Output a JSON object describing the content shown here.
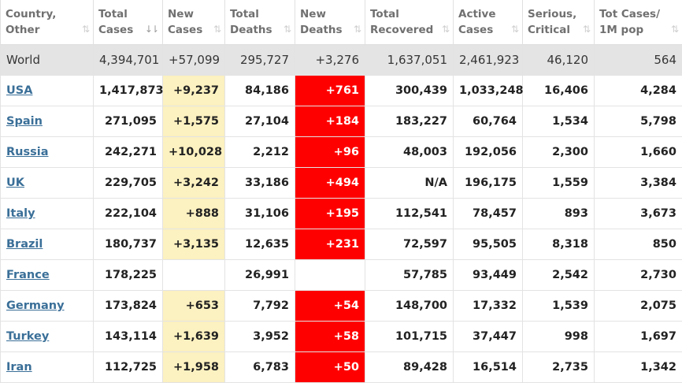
{
  "headers": [
    {
      "line1": "Country,",
      "line2": "Other",
      "sort": "⇅",
      "active": false
    },
    {
      "line1": "Total",
      "line2": "Cases",
      "sort": "↓⇂",
      "active": true
    },
    {
      "line1": "New",
      "line2": "Cases",
      "sort": "⇅",
      "active": false
    },
    {
      "line1": "Total",
      "line2": "Deaths",
      "sort": "⇅",
      "active": false
    },
    {
      "line1": "New",
      "line2": "Deaths",
      "sort": "⇅",
      "active": false
    },
    {
      "line1": "Total",
      "line2": "Recovered",
      "sort": "⇅",
      "active": false
    },
    {
      "line1": "Active",
      "line2": "Cases",
      "sort": "⇅",
      "active": false
    },
    {
      "line1": "Serious,",
      "line2": "Critical",
      "sort": "⇅",
      "active": false
    },
    {
      "line1": "Tot Cases/",
      "line2": "1M pop",
      "sort": "⇅",
      "active": false
    }
  ],
  "world": {
    "country": "World",
    "total_cases": "4,394,701",
    "new_cases": "+57,099",
    "total_deaths": "295,727",
    "new_deaths": "+3,276",
    "total_recovered": "1,637,051",
    "active_cases": "2,461,923",
    "serious_critical": "46,120",
    "cases_per_1m": "564"
  },
  "rows": [
    {
      "country": "USA",
      "total_cases": "1,417,873",
      "new_cases": "+9,237",
      "total_deaths": "84,186",
      "new_deaths": "+761",
      "total_recovered": "300,439",
      "active_cases": "1,033,248",
      "serious_critical": "16,406",
      "cases_per_1m": "4,284"
    },
    {
      "country": "Spain",
      "total_cases": "271,095",
      "new_cases": "+1,575",
      "total_deaths": "27,104",
      "new_deaths": "+184",
      "total_recovered": "183,227",
      "active_cases": "60,764",
      "serious_critical": "1,534",
      "cases_per_1m": "5,798"
    },
    {
      "country": "Russia",
      "total_cases": "242,271",
      "new_cases": "+10,028",
      "total_deaths": "2,212",
      "new_deaths": "+96",
      "total_recovered": "48,003",
      "active_cases": "192,056",
      "serious_critical": "2,300",
      "cases_per_1m": "1,660"
    },
    {
      "country": "UK",
      "total_cases": "229,705",
      "new_cases": "+3,242",
      "total_deaths": "33,186",
      "new_deaths": "+494",
      "total_recovered": "N/A",
      "active_cases": "196,175",
      "serious_critical": "1,559",
      "cases_per_1m": "3,384"
    },
    {
      "country": "Italy",
      "total_cases": "222,104",
      "new_cases": "+888",
      "total_deaths": "31,106",
      "new_deaths": "+195",
      "total_recovered": "112,541",
      "active_cases": "78,457",
      "serious_critical": "893",
      "cases_per_1m": "3,673"
    },
    {
      "country": "Brazil",
      "total_cases": "180,737",
      "new_cases": "+3,135",
      "total_deaths": "12,635",
      "new_deaths": "+231",
      "total_recovered": "72,597",
      "active_cases": "95,505",
      "serious_critical": "8,318",
      "cases_per_1m": "850"
    },
    {
      "country": "France",
      "total_cases": "178,225",
      "new_cases": "",
      "total_deaths": "26,991",
      "new_deaths": "",
      "total_recovered": "57,785",
      "active_cases": "93,449",
      "serious_critical": "2,542",
      "cases_per_1m": "2,730"
    },
    {
      "country": "Germany",
      "total_cases": "173,824",
      "new_cases": "+653",
      "total_deaths": "7,792",
      "new_deaths": "+54",
      "total_recovered": "148,700",
      "active_cases": "17,332",
      "serious_critical": "1,539",
      "cases_per_1m": "2,075"
    },
    {
      "country": "Turkey",
      "total_cases": "143,114",
      "new_cases": "+1,639",
      "total_deaths": "3,952",
      "new_deaths": "+58",
      "total_recovered": "101,715",
      "active_cases": "37,447",
      "serious_critical": "998",
      "cases_per_1m": "1,697"
    },
    {
      "country": "Iran",
      "total_cases": "112,725",
      "new_cases": "+1,958",
      "total_deaths": "6,783",
      "new_deaths": "+50",
      "total_recovered": "89,428",
      "active_cases": "16,514",
      "serious_critical": "2,735",
      "cases_per_1m": "1,342"
    }
  ],
  "colors": {
    "new_cases_bg": "#fcf1c0",
    "new_deaths_bg": "#ff0000",
    "world_row_bg": "#e4e4e4",
    "country_link": "#3a6f98"
  },
  "icons": {
    "sort": "sort-arrows-icon"
  }
}
